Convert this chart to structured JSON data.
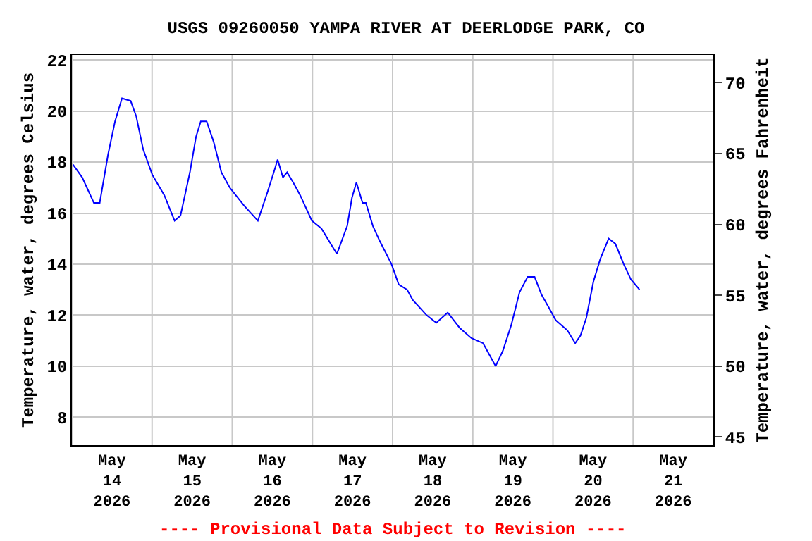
{
  "chart_data": {
    "type": "line",
    "title": "USGS 09260050 YAMPA RIVER AT DEERLODGE PARK, CO",
    "ylabel": "Temperature, water, degrees Celsius",
    "y2label": "Temperature, water, degrees Fahrenheit",
    "annotations": [
      "---- Provisional Data Subject to Revision ----"
    ],
    "xlim": [
      "2026-05-14",
      "2026-05-22"
    ],
    "xticks": [
      {
        "value": "2026-05-14T00:00",
        "label": null
      },
      {
        "value": "2026-05-14T12:00",
        "label": "May\n14\n2026"
      },
      {
        "value": "2026-05-15T00:00",
        "label": null
      },
      {
        "value": "2026-05-15T12:00",
        "label": "May\n15\n2026"
      },
      {
        "value": "2026-05-16T00:00",
        "label": null
      },
      {
        "value": "2026-05-16T12:00",
        "label": "May\n16\n2026"
      },
      {
        "value": "2026-05-17T00:00",
        "label": null
      },
      {
        "value": "2026-05-17T12:00",
        "label": "May\n17\n2026"
      },
      {
        "value": "2026-05-18T00:00",
        "label": null
      },
      {
        "value": "2026-05-18T12:00",
        "label": "May\n18\n2026"
      },
      {
        "value": "2026-05-19T00:00",
        "label": null
      },
      {
        "value": "2026-05-19T12:00",
        "label": "May\n19\n2026"
      },
      {
        "value": "2026-05-20T00:00",
        "label": null
      },
      {
        "value": "2026-05-20T12:00",
        "label": "May\n20\n2026"
      },
      {
        "value": "2026-05-21T00:00",
        "label": null
      },
      {
        "value": "2026-05-21T12:00",
        "label": "May\n21\n2026"
      },
      {
        "value": "2026-05-22T00:00",
        "label": null
      }
    ],
    "ylim": [
      6.9,
      22.2
    ],
    "yticks": [
      8,
      10,
      12,
      14,
      16,
      18,
      20,
      22
    ],
    "y2lim": [
      44.42,
      71.96
    ],
    "y2ticks": [
      45,
      50,
      55,
      60,
      65,
      70
    ],
    "grid": true,
    "marker": "none",
    "line_style": "solid",
    "x": [
      "2026-05-14T00:20",
      "2026-05-14T03:05",
      "2026-05-14T06:35",
      "2026-05-14T08:20",
      "2026-05-14T10:50",
      "2026-05-14T12:55",
      "2026-05-14T15:00",
      "2026-05-14T17:35",
      "2026-05-14T19:15",
      "2026-05-14T21:20",
      "2026-05-15T00:05",
      "2026-05-15T03:40",
      "2026-05-15T06:45",
      "2026-05-15T08:30",
      "2026-05-15T11:20",
      "2026-05-15T13:10",
      "2026-05-15T14:35",
      "2026-05-15T16:20",
      "2026-05-15T18:25",
      "2026-05-15T20:45",
      "2026-05-15T23:15",
      "2026-05-16T03:30",
      "2026-05-16T07:40",
      "2026-05-16T10:30",
      "2026-05-16T12:40",
      "2026-05-16T13:35",
      "2026-05-16T15:10",
      "2026-05-16T16:25",
      "2026-05-16T18:15",
      "2026-05-16T20:20",
      "2026-05-16T23:50",
      "2026-05-17T02:40",
      "2026-05-17T07:20",
      "2026-05-17T10:25",
      "2026-05-17T11:50",
      "2026-05-17T13:10",
      "2026-05-17T15:00",
      "2026-05-17T16:00",
      "2026-05-17T18:05",
      "2026-05-17T20:10",
      "2026-05-17T23:40",
      "2026-05-18T01:50",
      "2026-05-18T04:20",
      "2026-05-18T06:00",
      "2026-05-18T10:10",
      "2026-05-18T13:05",
      "2026-05-18T16:30",
      "2026-05-18T20:05",
      "2026-05-18T23:35",
      "2026-05-19T03:05",
      "2026-05-19T05:10",
      "2026-05-19T06:50",
      "2026-05-19T09:00",
      "2026-05-19T11:30",
      "2026-05-19T12:40",
      "2026-05-19T14:00",
      "2026-05-19T16:25",
      "2026-05-19T18:30",
      "2026-05-19T20:35",
      "2026-05-19T22:45",
      "2026-05-20T00:50",
      "2026-05-20T04:20",
      "2026-05-20T06:40",
      "2026-05-20T08:15",
      "2026-05-20T10:00",
      "2026-05-20T12:05",
      "2026-05-20T14:10",
      "2026-05-20T16:40",
      "2026-05-20T18:40",
      "2026-05-20T21:10",
      "2026-05-20T23:20",
      "2026-05-21T01:55"
    ],
    "series": [
      {
        "color": "#0000ff",
        "values": [
          17.9,
          17.4,
          16.4,
          16.4,
          18.3,
          19.6,
          20.5,
          20.4,
          19.8,
          18.5,
          17.5,
          16.7,
          15.7,
          15.9,
          17.6,
          19.0,
          19.6,
          19.6,
          18.8,
          17.6,
          17.0,
          16.3,
          15.7,
          16.8,
          17.7,
          18.1,
          17.4,
          17.6,
          17.2,
          16.7,
          15.7,
          15.4,
          14.4,
          15.5,
          16.6,
          17.2,
          16.4,
          16.4,
          15.5,
          14.9,
          14.0,
          13.2,
          13.0,
          12.6,
          12.0,
          11.7,
          12.1,
          11.5,
          11.1,
          10.9,
          10.4,
          10.0,
          10.6,
          11.6,
          12.2,
          12.9,
          13.5,
          13.5,
          12.8,
          12.3,
          11.8,
          11.4,
          10.9,
          11.2,
          11.9,
          13.3,
          14.2,
          15.0,
          14.8,
          14.0,
          13.4,
          13.0
        ]
      }
    ]
  }
}
